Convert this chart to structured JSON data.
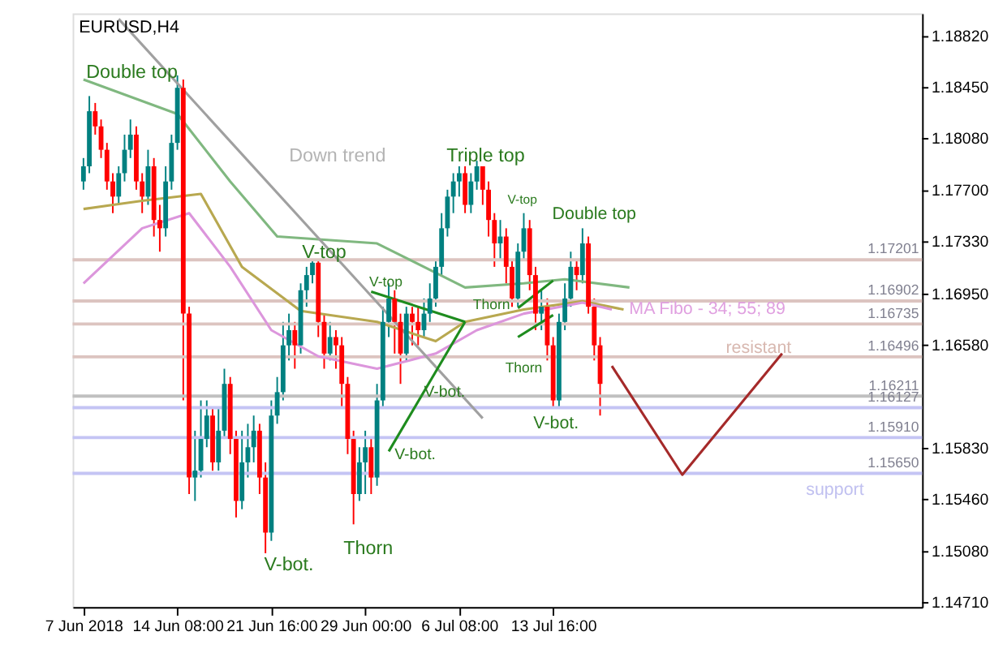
{
  "chart_data": {
    "type": "candlestick",
    "title": "EURUSD,H4",
    "categories": [
      "7 Jun 2018",
      null,
      null,
      null,
      null,
      null,
      null,
      null,
      null,
      null,
      null,
      null,
      null,
      null,
      null,
      null,
      "14 Jun 08:00",
      null,
      null,
      null,
      null,
      null,
      null,
      null,
      null,
      null,
      null,
      null,
      null,
      null,
      null,
      null,
      "21 Jun 16:00",
      null,
      null,
      null,
      null,
      null,
      null,
      null,
      null,
      null,
      null,
      null,
      null,
      null,
      null,
      null,
      "29 Jun 00:00",
      null,
      null,
      null,
      null,
      null,
      null,
      null,
      null,
      null,
      null,
      null,
      null,
      null,
      null,
      null,
      "6 Jul 08:00",
      null,
      null,
      null,
      null,
      null,
      null,
      null,
      null,
      null,
      null,
      null,
      null,
      null,
      null,
      null,
      "13 Jul 16:00",
      null,
      null,
      null,
      null,
      null,
      null,
      null,
      null,
      null,
      null,
      null,
      null,
      null,
      null,
      null,
      null,
      null,
      null,
      null,
      null,
      null,
      null,
      null,
      null,
      null,
      null,
      null,
      null,
      null,
      null,
      null,
      null,
      null,
      null,
      null,
      null,
      null,
      null,
      null,
      null,
      null,
      null,
      null,
      null,
      null,
      null,
      null,
      null,
      null,
      null,
      null,
      null,
      null,
      null,
      null,
      null,
      null,
      null,
      null,
      null,
      null
    ],
    "ohlc": [
      [
        1.1777,
        1.1794,
        1.1771,
        1.1788
      ],
      [
        1.1788,
        1.1839,
        1.1783,
        1.1828
      ],
      [
        1.1828,
        1.1834,
        1.1811,
        1.1817
      ],
      [
        1.1817,
        1.1822,
        1.1794,
        1.18
      ],
      [
        1.18,
        1.1805,
        1.1771,
        1.1777
      ],
      [
        1.1777,
        1.1783,
        1.1754,
        1.1766
      ],
      [
        1.1766,
        1.1788,
        1.176,
        1.1783
      ],
      [
        1.1783,
        1.1811,
        1.1777,
        1.18
      ],
      [
        1.18,
        1.1822,
        1.1794,
        1.1811
      ],
      [
        1.1811,
        1.1817,
        1.1771,
        1.1777
      ],
      [
        1.1777,
        1.1783,
        1.1754,
        1.1766
      ],
      [
        1.1766,
        1.18,
        1.176,
        1.1788
      ],
      [
        1.1788,
        1.1794,
        1.1737,
        1.1749
      ],
      [
        1.1749,
        1.176,
        1.1726,
        1.1743
      ],
      [
        1.1743,
        1.1788,
        1.1737,
        1.1777
      ],
      [
        1.1777,
        1.1811,
        1.1771,
        1.1805
      ],
      [
        1.1805,
        1.1854,
        1.18,
        1.1845
      ],
      [
        1.1845,
        1.1851,
        1.1618,
        1.1681
      ],
      [
        1.1681,
        1.1686,
        1.155,
        1.1562
      ],
      [
        1.1562,
        1.1596,
        1.1545,
        1.1567
      ],
      [
        1.1567,
        1.1618,
        1.1562,
        1.159
      ],
      [
        1.159,
        1.1618,
        1.1584,
        1.1607
      ],
      [
        1.1607,
        1.1613,
        1.1567,
        1.1573
      ],
      [
        1.1573,
        1.1613,
        1.1567,
        1.1596
      ],
      [
        1.1596,
        1.1641,
        1.159,
        1.163
      ],
      [
        1.163,
        1.1635,
        1.1579,
        1.159
      ],
      [
        1.159,
        1.1596,
        1.1533,
        1.1545
      ],
      [
        1.1545,
        1.1596,
        1.1539,
        1.1573
      ],
      [
        1.1573,
        1.1601,
        1.1562,
        1.1584
      ],
      [
        1.1584,
        1.1607,
        1.1573,
        1.1596
      ],
      [
        1.1596,
        1.1601,
        1.155,
        1.1562
      ],
      [
        1.1562,
        1.1573,
        1.1507,
        1.1522
      ],
      [
        1.1522,
        1.1618,
        1.1516,
        1.1607
      ],
      [
        1.1607,
        1.1635,
        1.1601,
        1.1624
      ],
      [
        1.1624,
        1.1675,
        1.1618,
        1.1658
      ],
      [
        1.1658,
        1.1681,
        1.1647,
        1.1669
      ],
      [
        1.1669,
        1.1675,
        1.1641,
        1.1658
      ],
      [
        1.1658,
        1.1703,
        1.1652,
        1.1698
      ],
      [
        1.1698,
        1.1715,
        1.1686,
        1.1709
      ],
      [
        1.1709,
        1.172,
        1.1703,
        1.1718
      ],
      [
        1.1718,
        1.172,
        1.1664,
        1.1675
      ],
      [
        1.1675,
        1.1681,
        1.1641,
        1.1652
      ],
      [
        1.1652,
        1.1675,
        1.1647,
        1.1664
      ],
      [
        1.1664,
        1.1669,
        1.1641,
        1.1658
      ],
      [
        1.1658,
        1.1664,
        1.1613,
        1.163
      ],
      [
        1.163,
        1.1635,
        1.1579,
        1.159
      ],
      [
        1.159,
        1.1596,
        1.1528,
        1.155
      ],
      [
        1.155,
        1.1584,
        1.1545,
        1.1573
      ],
      [
        1.1573,
        1.1596,
        1.155,
        1.1584
      ],
      [
        1.1584,
        1.159,
        1.155,
        1.1562
      ],
      [
        1.1562,
        1.163,
        1.1556,
        1.1618
      ],
      [
        1.1618,
        1.1686,
        1.1613,
        1.1675
      ],
      [
        1.1675,
        1.1703,
        1.1664,
        1.1692
      ],
      [
        1.1692,
        1.1698,
        1.1652,
        1.1675
      ],
      [
        1.1675,
        1.1681,
        1.163,
        1.1652
      ],
      [
        1.1652,
        1.1686,
        1.1647,
        1.1681
      ],
      [
        1.1681,
        1.1686,
        1.1658,
        1.1675
      ],
      [
        1.1675,
        1.1686,
        1.1658,
        1.1669
      ],
      [
        1.1669,
        1.1692,
        1.1664,
        1.1681
      ],
      [
        1.1681,
        1.1703,
        1.1675,
        1.1692
      ],
      [
        1.1692,
        1.172,
        1.1686,
        1.1715
      ],
      [
        1.1715,
        1.1754,
        1.1709,
        1.1743
      ],
      [
        1.1743,
        1.1771,
        1.1737,
        1.1766
      ],
      [
        1.1766,
        1.1783,
        1.1754,
        1.1777
      ],
      [
        1.1777,
        1.1788,
        1.1766,
        1.1783
      ],
      [
        1.1783,
        1.1788,
        1.1754,
        1.176
      ],
      [
        1.176,
        1.1783,
        1.1754,
        1.1777
      ],
      [
        1.1777,
        1.1792,
        1.1771,
        1.1788
      ],
      [
        1.1788,
        1.1788,
        1.176,
        1.1771
      ],
      [
        1.1771,
        1.1777,
        1.1737,
        1.1749
      ],
      [
        1.1749,
        1.1754,
        1.1715,
        1.1732
      ],
      [
        1.1732,
        1.1749,
        1.172,
        1.1737
      ],
      [
        1.1737,
        1.1743,
        1.1703,
        1.1715
      ],
      [
        1.1715,
        1.172,
        1.1686,
        1.1692
      ],
      [
        1.1692,
        1.1732,
        1.1686,
        1.1726
      ],
      [
        1.1726,
        1.1754,
        1.172,
        1.1743
      ],
      [
        1.1743,
        1.1749,
        1.1698,
        1.1709
      ],
      [
        1.1709,
        1.1715,
        1.1669,
        1.1681
      ],
      [
        1.1681,
        1.1698,
        1.1669,
        1.1686
      ],
      [
        1.1686,
        1.1692,
        1.1647,
        1.1658
      ],
      [
        1.1658,
        1.1664,
        1.1613,
        1.1618
      ],
      [
        1.1618,
        1.1681,
        1.1613,
        1.1675
      ],
      [
        1.1675,
        1.1703,
        1.1669,
        1.1692
      ],
      [
        1.1692,
        1.1726,
        1.1686,
        1.1715
      ],
      [
        1.1715,
        1.172,
        1.1698,
        1.1709
      ],
      [
        1.1709,
        1.1743,
        1.1703,
        1.1732
      ],
      [
        1.1732,
        1.1737,
        1.1681,
        1.1686
      ],
      [
        1.1686,
        1.1692,
        1.1647,
        1.1658
      ],
      [
        1.1658,
        1.1664,
        1.1607,
        1.163
      ],
      null,
      null,
      null,
      null,
      null,
      null,
      null,
      null,
      null,
      null,
      null,
      null,
      null,
      null,
      null,
      null,
      null,
      null,
      null,
      null,
      null,
      null,
      null,
      null,
      null,
      null,
      null,
      null,
      null,
      null,
      null,
      null,
      null,
      null,
      null,
      null,
      null,
      null,
      null,
      null,
      null,
      null,
      null,
      null,
      null,
      null,
      null,
      null,
      null,
      null,
      null,
      null,
      null
    ],
    "colors": [
      "#008080",
      "#008080",
      "#ff0000",
      "#ff0000",
      "#ff0000",
      "#ff0000",
      "#008080",
      "#008080",
      "#008080",
      "#ff0000",
      "#ff0000",
      "#008080",
      "#ff0000",
      "#ff0000",
      "#008080",
      "#008080",
      "#008080",
      "#ff0000",
      "#ff0000",
      "#008080",
      "#008080",
      "#008080",
      "#ff0000",
      "#008080",
      "#008080",
      "#ff0000",
      "#ff0000",
      "#008080",
      "#008080",
      "#008080",
      "#ff0000",
      "#ff0000",
      "#008080",
      "#008080",
      "#008080",
      "#008080",
      "#ff0000",
      "#008080",
      "#008080",
      "#008080",
      "#ff0000",
      "#ff0000",
      "#008080",
      "#ff0000",
      "#ff0000",
      "#ff0000",
      "#ff0000",
      "#008080",
      "#008080",
      "#ff0000",
      "#008080",
      "#008080",
      "#008080",
      "#ff0000",
      "#ff0000",
      "#008080",
      "#ff0000",
      "#ff0000",
      "#008080",
      "#008080",
      "#008080",
      "#008080",
      "#008080",
      "#008080",
      "#008080",
      "#ff0000",
      "#008080",
      "#008080",
      "#ff0000",
      "#ff0000",
      "#ff0000",
      "#008080",
      "#ff0000",
      "#ff0000",
      "#008080",
      "#008080",
      "#ff0000",
      "#ff0000",
      "#008080",
      "#ff0000",
      "#ff0000",
      "#008080",
      "#008080",
      "#008080",
      "#ff0000",
      "#008080",
      "#ff0000",
      "#ff0000",
      "#ff0000",
      null,
      null,
      null,
      null,
      null,
      null,
      null,
      null,
      null,
      null,
      null,
      null,
      null,
      null,
      null,
      null,
      null,
      null,
      null,
      null,
      null,
      null,
      null,
      null,
      null,
      null,
      null,
      null,
      null,
      null,
      null,
      null,
      null,
      null,
      null,
      null,
      null,
      null,
      null,
      null,
      null,
      null,
      null,
      null,
      null,
      null,
      null,
      null,
      null,
      null,
      null,
      null,
      null
    ],
    "series": [
      {
        "type": "line",
        "color": "#80b880",
        "values": [
          1.1851,
          null,
          null,
          null,
          null,
          null,
          null,
          null,
          null,
          null,
          null,
          null,
          null,
          null,
          null,
          null,
          1.1826,
          null,
          null,
          null,
          null,
          null,
          null,
          null,
          null,
          1.1777,
          null,
          null,
          null,
          null,
          null,
          null,
          null,
          1.1737,
          null,
          null,
          null,
          null,
          null,
          null,
          null,
          null,
          null,
          null,
          null,
          null,
          null,
          null,
          null,
          null,
          1.1732,
          null,
          null,
          null,
          null,
          null,
          null,
          null,
          null,
          null,
          null,
          null,
          null,
          null,
          null,
          1.17,
          null,
          null,
          null,
          null,
          null,
          null,
          null,
          null,
          null,
          1.1703,
          null,
          null,
          null,
          null,
          null,
          null,
          1.1706,
          null,
          null,
          null,
          null,
          null,
          null,
          null,
          null,
          null,
          null,
          1.17,
          null,
          null,
          null,
          null,
          null,
          null,
          null,
          null,
          null,
          null,
          null,
          null,
          null,
          null,
          null,
          null,
          null,
          null,
          null,
          null,
          null,
          null,
          null,
          null,
          null,
          null,
          null,
          null,
          null,
          null,
          null,
          null,
          null,
          null,
          null,
          null,
          null,
          null,
          null,
          null,
          null,
          null,
          null,
          null,
          null,
          null,
          null,
          null
        ]
      },
      {
        "type": "line",
        "color": "#b8a850",
        "values": [
          1.1757,
          null,
          null,
          null,
          null,
          null,
          null,
          null,
          null,
          null,
          1.1763,
          null,
          null,
          null,
          null,
          null,
          null,
          null,
          null,
          null,
          1.1768,
          null,
          null,
          null,
          null,
          null,
          null,
          1.1715,
          null,
          null,
          null,
          null,
          null,
          null,
          null,
          null,
          null,
          1.1683,
          null,
          null,
          null,
          null,
          null,
          null,
          null,
          null,
          null,
          null,
          null,
          null,
          1.1675,
          null,
          null,
          null,
          null,
          null,
          null,
          null,
          null,
          null,
          1.1661,
          null,
          null,
          null,
          null,
          1.1675,
          null,
          null,
          null,
          null,
          null,
          null,
          null,
          null,
          null,
          1.1684,
          null,
          null,
          null,
          null,
          null,
          null,
          null,
          null,
          null,
          1.169,
          null,
          null,
          null,
          null,
          null,
          null,
          1.1684,
          null,
          null,
          null,
          null,
          null,
          null,
          null,
          null,
          null,
          null,
          null,
          null,
          null,
          null,
          null,
          null,
          null,
          null,
          null,
          null,
          null,
          null,
          null,
          null,
          null,
          null,
          null,
          null,
          null,
          null,
          null,
          null,
          null,
          null,
          null,
          null,
          null,
          null,
          null,
          null,
          null,
          null,
          null,
          null,
          null,
          null,
          null,
          null,
          null
        ]
      },
      {
        "type": "line",
        "color": "#dc96dc",
        "values": [
          1.1703,
          null,
          null,
          null,
          null,
          null,
          null,
          null,
          null,
          null,
          1.1743,
          null,
          null,
          null,
          null,
          null,
          null,
          null,
          1.1754,
          null,
          null,
          null,
          null,
          null,
          null,
          1.1715,
          null,
          null,
          null,
          null,
          null,
          null,
          1.1669,
          null,
          null,
          null,
          null,
          null,
          null,
          null,
          1.165,
          null,
          null,
          null,
          null,
          null,
          null,
          null,
          null,
          null,
          1.1641,
          null,
          null,
          null,
          null,
          null,
          null,
          null,
          null,
          null,
          1.1652,
          null,
          null,
          null,
          null,
          null,
          null,
          1.1669,
          null,
          null,
          null,
          null,
          null,
          null,
          null,
          1.1681,
          null,
          null,
          null,
          null,
          null,
          null,
          null,
          null,
          null,
          1.1689,
          null,
          null,
          null,
          null,
          1.1684,
          null,
          null,
          null,
          null,
          null,
          null,
          null,
          null,
          null,
          null,
          null,
          null,
          null,
          null,
          null,
          null,
          null,
          null,
          null,
          null,
          null,
          null,
          null,
          null,
          null,
          null,
          null,
          null,
          null,
          null,
          null,
          null,
          null,
          null,
          null,
          null,
          null,
          null,
          null,
          null,
          null,
          null,
          null,
          null,
          null,
          null,
          null,
          null,
          null,
          null,
          null
        ]
      },
      {
        "type": "line",
        "color": "#a0a0a0",
        "values": [
          null,
          null,
          null,
          null,
          null,
          null,
          1.1895,
          null,
          null,
          null,
          null,
          null,
          null,
          null,
          null,
          null,
          null,
          null,
          null,
          null,
          null,
          null,
          null,
          null,
          null,
          null,
          null,
          null,
          null,
          null,
          null,
          null,
          null,
          null,
          null,
          null,
          null,
          null,
          null,
          null,
          null,
          null,
          null,
          null,
          null,
          null,
          null,
          null,
          null,
          null,
          null,
          null,
          null,
          null,
          null,
          null,
          null,
          null,
          null,
          null,
          null,
          null,
          null,
          null,
          null,
          null,
          null,
          null,
          1.1605,
          null,
          null,
          null,
          null,
          null,
          null,
          null,
          null,
          null,
          null,
          null,
          null,
          null,
          null,
          null,
          null,
          null,
          null,
          null,
          null,
          null,
          null,
          null,
          null,
          null,
          null,
          null,
          null,
          null,
          null,
          null,
          null,
          null,
          null,
          null,
          null,
          null,
          null,
          null,
          null,
          null,
          null,
          null,
          null,
          null,
          null,
          null,
          null,
          null,
          null,
          null,
          null,
          null,
          null,
          null,
          null,
          null,
          null,
          null,
          null,
          null,
          null,
          null,
          null,
          null,
          null,
          null,
          null,
          null,
          null,
          null,
          null,
          null
        ]
      },
      {
        "type": "line",
        "color": "#1e8c1e",
        "values": [
          null,
          null,
          null,
          null,
          null,
          null,
          null,
          null,
          null,
          null,
          null,
          null,
          null,
          null,
          null,
          null,
          null,
          null,
          null,
          null,
          null,
          null,
          null,
          null,
          null,
          null,
          null,
          null,
          null,
          null,
          null,
          null,
          null,
          null,
          null,
          null,
          null,
          null,
          null,
          null,
          null,
          null,
          null,
          null,
          null,
          null,
          null,
          null,
          null,
          1.1697,
          null,
          null,
          null,
          null,
          null,
          null,
          null,
          null,
          null,
          null,
          null,
          null,
          null,
          null,
          null,
          1.1675,
          null,
          null,
          null,
          null,
          null,
          null,
          null,
          null,
          null,
          null,
          null,
          null,
          null,
          null,
          null,
          null,
          null,
          null,
          null,
          null,
          null,
          null,
          null,
          null,
          null,
          null,
          null,
          null,
          null,
          null,
          null,
          null,
          null,
          null,
          null,
          null,
          null,
          null,
          null,
          null,
          null,
          null,
          null,
          null,
          null,
          null,
          null,
          null,
          null,
          null,
          null,
          null,
          null,
          null,
          null,
          null,
          null,
          null,
          null,
          null,
          null,
          null,
          null,
          null,
          null,
          null,
          null,
          null,
          null,
          null,
          null,
          null,
          null,
          null,
          null,
          null
        ]
      },
      {
        "type": "line",
        "color": "#1e8c1e",
        "values": [
          null,
          null,
          null,
          null,
          null,
          null,
          null,
          null,
          null,
          null,
          null,
          null,
          null,
          null,
          null,
          null,
          null,
          null,
          null,
          null,
          null,
          null,
          null,
          null,
          null,
          null,
          null,
          null,
          null,
          null,
          null,
          null,
          null,
          null,
          null,
          null,
          null,
          null,
          null,
          null,
          null,
          null,
          null,
          null,
          null,
          null,
          null,
          null,
          null,
          null,
          null,
          null,
          1.1581,
          null,
          null,
          null,
          null,
          null,
          null,
          null,
          null,
          null,
          null,
          null,
          null,
          1.1675,
          null,
          null,
          null,
          null,
          null,
          null,
          null,
          null,
          null,
          null,
          null,
          null,
          null,
          null,
          null,
          null,
          null,
          null,
          null,
          null,
          null,
          null,
          null,
          null,
          null,
          null,
          null,
          null,
          null,
          null,
          null,
          null,
          null,
          null,
          null,
          null,
          null,
          null,
          null,
          null,
          null,
          null,
          null,
          null,
          null,
          null,
          null,
          null,
          null,
          null,
          null,
          null,
          null,
          null,
          null,
          null,
          null,
          null,
          null,
          null,
          null,
          null,
          null,
          null,
          null,
          null,
          null,
          null,
          null,
          null,
          null,
          null,
          null,
          null,
          null,
          null
        ]
      },
      {
        "type": "line",
        "color": "#1e8c1e",
        "values": [
          null,
          null,
          null,
          null,
          null,
          null,
          null,
          null,
          null,
          null,
          null,
          null,
          null,
          null,
          null,
          null,
          null,
          null,
          null,
          null,
          null,
          null,
          null,
          null,
          null,
          null,
          null,
          null,
          null,
          null,
          null,
          null,
          null,
          null,
          null,
          null,
          null,
          null,
          null,
          null,
          null,
          null,
          null,
          null,
          null,
          null,
          null,
          null,
          null,
          null,
          null,
          null,
          null,
          null,
          null,
          null,
          null,
          null,
          null,
          null,
          null,
          null,
          null,
          null,
          null,
          null,
          null,
          null,
          null,
          null,
          null,
          null,
          null,
          null,
          1.1685,
          null,
          null,
          null,
          null,
          null,
          1.1705,
          null,
          null,
          null,
          null,
          null,
          null,
          null,
          null,
          null,
          null,
          null,
          null,
          null,
          null,
          null,
          null,
          null,
          null,
          null,
          null,
          null,
          null,
          null,
          null,
          null,
          null,
          null,
          null,
          null,
          null,
          null,
          null,
          null,
          null,
          null,
          null,
          null,
          null,
          null,
          null,
          null,
          null,
          null,
          null,
          null,
          null,
          null,
          null,
          null,
          null,
          null,
          null,
          null,
          null,
          null,
          null,
          null,
          null,
          null,
          null,
          null
        ]
      },
      {
        "type": "line",
        "color": "#1e8c1e",
        "values": [
          null,
          null,
          null,
          null,
          null,
          null,
          null,
          null,
          null,
          null,
          null,
          null,
          null,
          null,
          null,
          null,
          null,
          null,
          null,
          null,
          null,
          null,
          null,
          null,
          null,
          null,
          null,
          null,
          null,
          null,
          null,
          null,
          null,
          null,
          null,
          null,
          null,
          null,
          null,
          null,
          null,
          null,
          null,
          null,
          null,
          null,
          null,
          null,
          null,
          null,
          null,
          null,
          null,
          null,
          null,
          null,
          null,
          null,
          null,
          null,
          null,
          null,
          null,
          null,
          null,
          null,
          null,
          null,
          null,
          null,
          null,
          null,
          null,
          null,
          1.1664,
          null,
          null,
          null,
          null,
          null,
          1.168,
          null,
          null,
          null,
          null,
          null,
          null,
          null,
          null,
          null,
          null,
          null,
          null,
          null,
          null,
          null,
          null,
          null,
          null,
          null,
          null,
          null,
          null,
          null,
          null,
          null,
          null,
          null,
          null,
          null,
          null,
          null,
          null,
          null,
          null,
          null,
          null,
          null,
          null,
          null,
          null,
          null,
          null,
          null,
          null,
          null,
          null,
          null,
          null,
          null,
          null,
          null,
          null,
          null,
          null,
          null,
          null,
          null,
          null,
          null,
          null,
          null
        ]
      },
      {
        "type": "line",
        "color": "#a52a2a",
        "values": [
          null,
          null,
          null,
          null,
          null,
          null,
          null,
          null,
          null,
          null,
          null,
          null,
          null,
          null,
          null,
          null,
          null,
          null,
          null,
          null,
          null,
          null,
          null,
          null,
          null,
          null,
          null,
          null,
          null,
          null,
          null,
          null,
          null,
          null,
          null,
          null,
          null,
          null,
          null,
          null,
          null,
          null,
          null,
          null,
          null,
          null,
          null,
          null,
          null,
          null,
          null,
          null,
          null,
          null,
          null,
          null,
          null,
          null,
          null,
          null,
          null,
          null,
          null,
          null,
          null,
          null,
          null,
          null,
          null,
          null,
          null,
          null,
          null,
          null,
          null,
          null,
          null,
          null,
          null,
          null,
          null,
          null,
          null,
          null,
          null,
          null,
          null,
          null,
          null,
          null,
          1.1643,
          null,
          null,
          null,
          null,
          null,
          null,
          null,
          null,
          null,
          null,
          null,
          1.1564,
          null,
          null,
          null,
          null,
          null,
          null,
          null,
          null,
          null,
          null,
          null,
          null,
          null,
          null,
          null,
          null,
          1.1652,
          null,
          null,
          null,
          null,
          null,
          null,
          null,
          null,
          null,
          null,
          null,
          null,
          null,
          null,
          null,
          null,
          null,
          null,
          null,
          null,
          null,
          null
        ]
      }
    ],
    "ylim": [
      1.1468,
      1.1899
    ],
    "yticks": [
      {
        "value": 1.1882,
        "label": "1.18820"
      },
      {
        "value": 1.1845,
        "label": "1.18450"
      },
      {
        "value": 1.1808,
        "label": "1.18080"
      },
      {
        "value": 1.177,
        "label": "1.17700"
      },
      {
        "value": 1.1733,
        "label": "1.17330"
      },
      {
        "value": 1.1695,
        "label": "1.16950"
      },
      {
        "value": 1.1658,
        "label": "1.16580"
      },
      {
        "value": 1.1583,
        "label": "1.15830"
      },
      {
        "value": 1.1546,
        "label": "1.15460"
      },
      {
        "value": 1.1508,
        "label": "1.15080"
      },
      {
        "value": 1.1471,
        "label": "1.14710"
      }
    ],
    "ref_lines": [
      {
        "axis": "y",
        "value": 1.17201,
        "label": "1.17201",
        "color": "#dcc4c0"
      },
      {
        "axis": "y",
        "value": 1.16902,
        "label": "1.16902",
        "color": "#dcc4c0"
      },
      {
        "axis": "y",
        "value": 1.16735,
        "label": "1.16735",
        "color": "#dcc4c0"
      },
      {
        "axis": "y",
        "value": 1.16496,
        "label": "1.16496",
        "color": "#dcc4c0"
      },
      {
        "axis": "y",
        "value": 1.16211,
        "label": "1.16211",
        "color": "#c0c0c0"
      },
      {
        "axis": "y",
        "value": 1.16127,
        "label": "1.16127",
        "color": "#c4c4f4"
      },
      {
        "axis": "y",
        "value": 1.1591,
        "label": "1.15910",
        "color": "#c4c4f4"
      },
      {
        "axis": "y",
        "value": 1.1565,
        "label": "1.15650",
        "color": "#c4c4f4"
      }
    ],
    "annotations": [
      "Double top",
      "Down trend",
      "V-top",
      "V-bot.",
      "Thorn",
      "V-top",
      "V-bot.",
      "V-bot.",
      "Triple top",
      "V-top",
      "Thorn",
      "Thorn",
      "Double top",
      "V-bot.",
      "MA Fibo - 34; 55; 89",
      "resistant",
      "support"
    ]
  }
}
